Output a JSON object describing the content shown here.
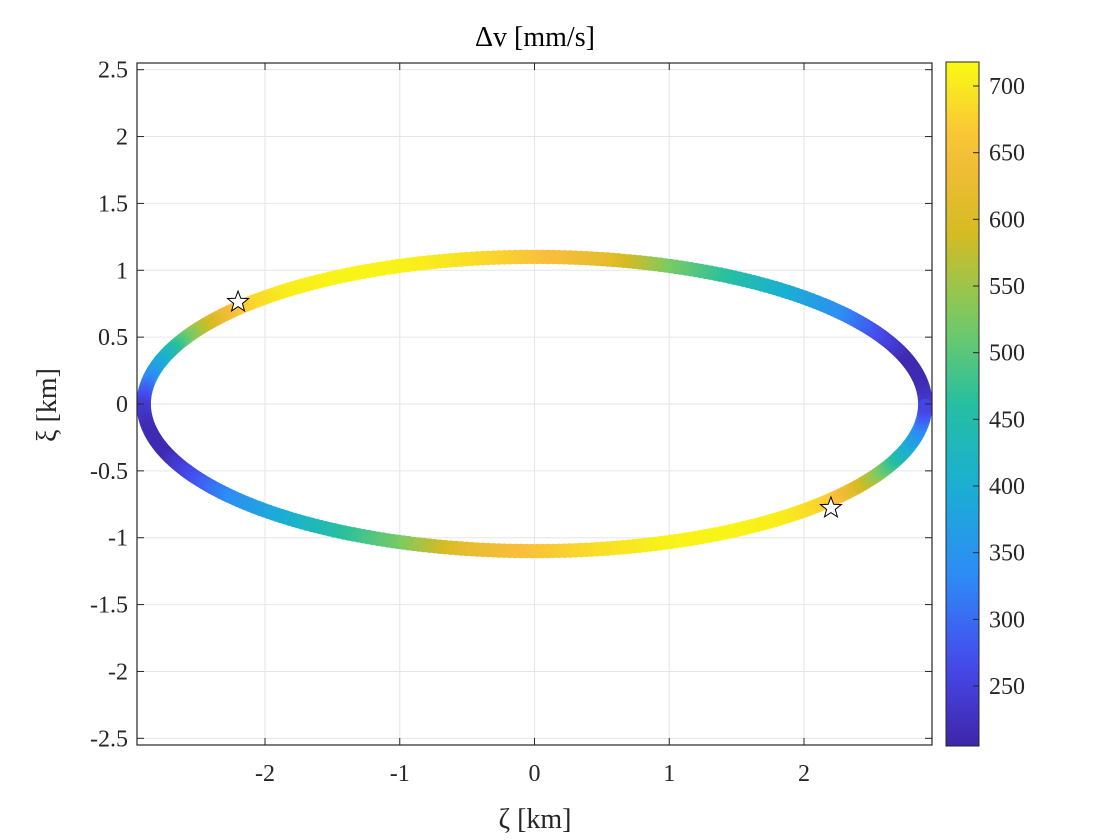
{
  "chart_data": {
    "type": "scatter",
    "title": "Δv [mm/s]",
    "xlabel": "ζ [km]",
    "ylabel": "ξ [km]",
    "xlim": [
      -2.95,
      2.95
    ],
    "ylim": [
      -2.55,
      2.55
    ],
    "xticks": [
      -2,
      -1,
      0,
      1,
      2
    ],
    "yticks": [
      -2.5,
      -2,
      -1.5,
      -1,
      -0.5,
      0,
      0.5,
      1,
      1.5,
      2,
      2.5
    ],
    "xtick_labels": [
      "-2",
      "-1",
      "0",
      "1",
      "2"
    ],
    "ytick_labels": [
      "-2.5",
      "-2",
      "-1.5",
      "-1",
      "-0.5",
      "0",
      "0.5",
      "1",
      "1.5",
      "2",
      "2.5"
    ],
    "grid": true,
    "colormap": "parula",
    "colorbar": {
      "range": [
        205,
        718
      ],
      "ticks": [
        250,
        300,
        350,
        400,
        450,
        500,
        550,
        600,
        650,
        700
      ],
      "tick_labels": [
        "250",
        "300",
        "350",
        "400",
        "450",
        "500",
        "550",
        "600",
        "650",
        "700"
      ]
    },
    "series": [
      {
        "curve": "ellipse",
        "semi_axis_zeta_km": 2.9,
        "semi_axis_xi_km": 1.1,
        "points_sampled_by_angle_deg": [
          [
            0,
            250
          ],
          [
            10,
            215
          ],
          [
            20,
            212
          ],
          [
            30,
            270
          ],
          [
            40,
            340
          ],
          [
            50,
            395
          ],
          [
            60,
            455
          ],
          [
            70,
            520
          ],
          [
            80,
            620
          ],
          [
            90,
            660
          ],
          [
            100,
            690
          ],
          [
            110,
            710
          ],
          [
            120,
            712
          ],
          [
            130,
            705
          ],
          [
            140,
            670
          ],
          [
            150,
            560
          ],
          [
            160,
            435
          ],
          [
            170,
            340
          ],
          [
            180,
            250
          ],
          [
            190,
            215
          ],
          [
            200,
            212
          ],
          [
            210,
            270
          ],
          [
            220,
            340
          ],
          [
            230,
            395
          ],
          [
            240,
            455
          ],
          [
            250,
            520
          ],
          [
            260,
            620
          ],
          [
            270,
            660
          ],
          [
            280,
            690
          ],
          [
            290,
            710
          ],
          [
            300,
            712
          ],
          [
            310,
            705
          ],
          [
            320,
            670
          ],
          [
            330,
            560
          ],
          [
            340,
            435
          ],
          [
            350,
            340
          ]
        ]
      }
    ],
    "markers": [
      {
        "symbol": "star",
        "zeta": -2.2,
        "xi": 0.77
      },
      {
        "symbol": "star",
        "zeta": 2.2,
        "xi": -0.77
      }
    ]
  }
}
